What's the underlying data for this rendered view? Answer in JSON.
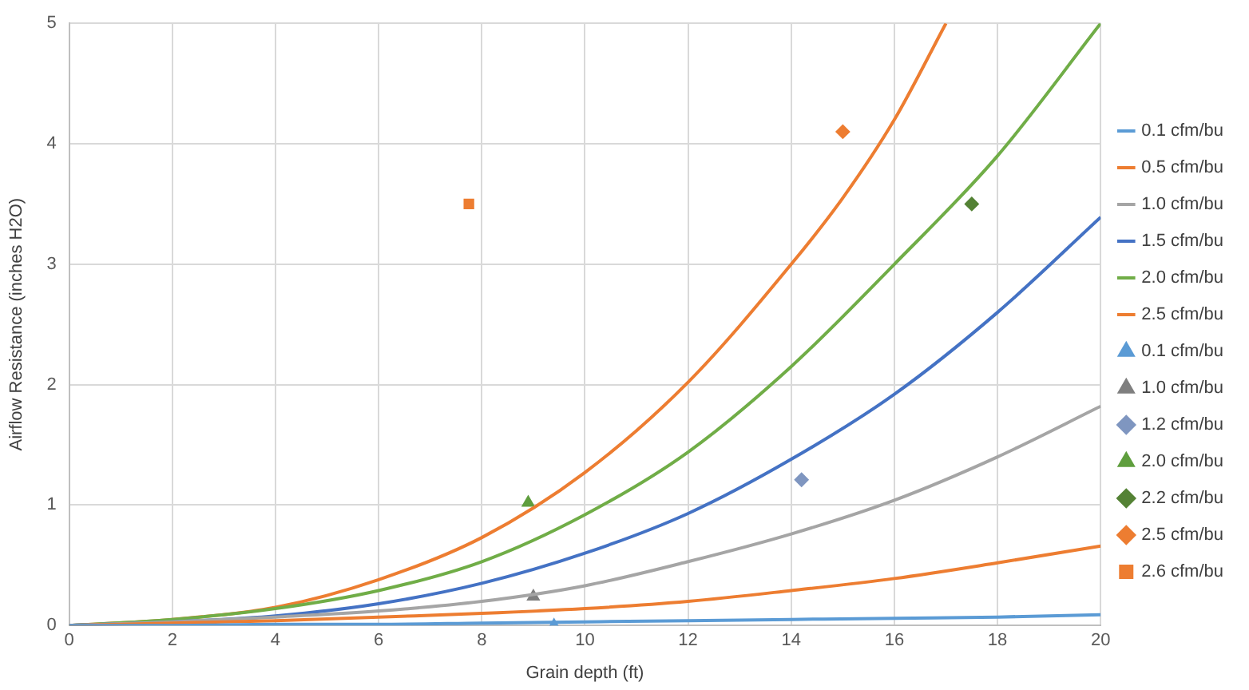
{
  "chart_data": {
    "type": "line",
    "xlabel": "Grain depth (ft)",
    "ylabel": "Airflow Resistance (inches H2O)",
    "xlim": [
      0,
      20
    ],
    "ylim": [
      0,
      5
    ],
    "xticks": [
      0,
      2,
      4,
      6,
      8,
      10,
      12,
      14,
      16,
      18,
      20
    ],
    "yticks": [
      0,
      1,
      2,
      3,
      4,
      5
    ],
    "grid": true,
    "legend": "right",
    "marker": "none",
    "line_style": "solid",
    "x": [
      0,
      2,
      4,
      6,
      8,
      10,
      12,
      14,
      16,
      18,
      20
    ],
    "series": [
      {
        "name": "0.1 cfm/bu",
        "color": "#5b9bd5",
        "values": [
          0,
          0,
          0.01,
          0.01,
          0.02,
          0.03,
          0.04,
          0.05,
          0.06,
          0.07,
          0.09
        ]
      },
      {
        "name": "0.5 cfm/bu",
        "color": "#ed7d31",
        "values": [
          0,
          0.02,
          0.04,
          0.07,
          0.1,
          0.14,
          0.2,
          0.29,
          0.39,
          0.52,
          0.66
        ]
      },
      {
        "name": "1.0 cfm/bu",
        "color": "#a5a5a5",
        "values": [
          0,
          0.03,
          0.07,
          0.12,
          0.2,
          0.33,
          0.53,
          0.76,
          1.04,
          1.4,
          1.82
        ]
      },
      {
        "name": "1.5 cfm/bu",
        "color": "#4472c4",
        "values": [
          0,
          0.03,
          0.08,
          0.18,
          0.35,
          0.6,
          0.93,
          1.38,
          1.92,
          2.6,
          3.39
        ]
      },
      {
        "name": "2.0 cfm/bu",
        "color": "#70ad47",
        "values": [
          0,
          0.05,
          0.14,
          0.29,
          0.53,
          0.92,
          1.44,
          2.15,
          3.0,
          3.9,
          5.0
        ]
      },
      {
        "name": "2.5 cfm/bu",
        "color": "#ed7d31",
        "x": [
          0,
          2,
          4,
          6,
          8,
          10,
          12,
          14,
          15,
          16,
          17
        ],
        "values": [
          0,
          0.05,
          0.15,
          0.38,
          0.73,
          1.27,
          2.02,
          3.0,
          3.55,
          4.2,
          5.0
        ]
      },
      {
        "name": "0.1 cfm/bu",
        "type": "scatter",
        "marker": "triangle",
        "color": "#5b9bd5",
        "x": [
          9.4
        ],
        "values": [
          0
        ]
      },
      {
        "name": "1.0 cfm/bu",
        "type": "scatter",
        "marker": "triangle",
        "color": "#7f7f7f",
        "x": [
          9.0
        ],
        "values": [
          0.24
        ]
      },
      {
        "name": "1.2 cfm/bu",
        "type": "scatter",
        "marker": "diamond",
        "color": "#7f96c0",
        "x": [
          14.2
        ],
        "values": [
          1.21
        ]
      },
      {
        "name": "2.0 cfm/bu",
        "type": "scatter",
        "marker": "triangle",
        "color": "#5f9e3e",
        "x": [
          8.9
        ],
        "values": [
          1.02
        ]
      },
      {
        "name": "2.2 cfm/bu",
        "type": "scatter",
        "marker": "diamond",
        "color": "#548235",
        "x": [
          17.5
        ],
        "values": [
          3.5
        ]
      },
      {
        "name": "2.5 cfm/bu",
        "type": "scatter",
        "marker": "diamond",
        "color": "#ed7d31",
        "x": [
          15.0
        ],
        "values": [
          4.1
        ]
      },
      {
        "name": "2.6 cfm/bu",
        "type": "scatter",
        "marker": "square",
        "color": "#ed7d31",
        "x": [
          7.75
        ],
        "values": [
          3.5
        ]
      }
    ]
  }
}
